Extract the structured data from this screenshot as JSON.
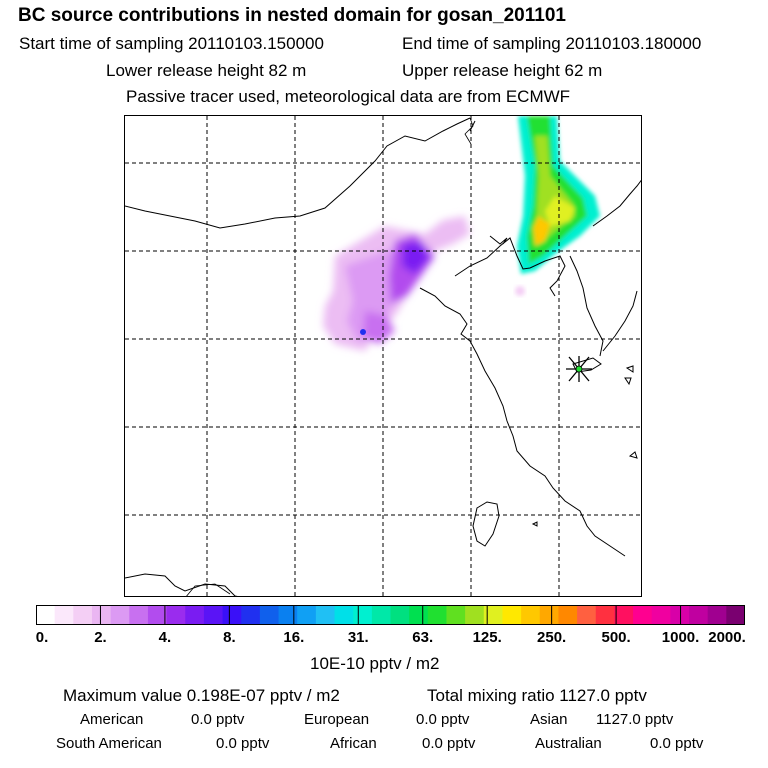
{
  "header": {
    "title": "BC  source contributions in nested domain for gosan_201101",
    "start_label": "Start time of sampling 20110103.150000",
    "end_label": "End time of sampling 20110103.180000",
    "lower_label": "Lower release height   82 m",
    "upper_label": "Upper release height   62 m",
    "tracer_label": "Passive tracer used, meteorological data are from ECMWF"
  },
  "colorbar": {
    "tick_labels": [
      "0.",
      "2.",
      "4.",
      "8.",
      "16.",
      "31.",
      "63.",
      "125.",
      "250.",
      "500.",
      "1000.",
      "2000."
    ],
    "unit": "10E-10 pptv / m2",
    "colors": [
      "#ffffff",
      "#fbe8fb",
      "#f4cff5",
      "#eab6f2",
      "#dc9af3",
      "#c870f0",
      "#b24cee",
      "#9a2cee",
      "#7a1cf2",
      "#5a14f6",
      "#3a10f8",
      "#2030f0",
      "#1060ec",
      "#0a80f0",
      "#10a0f4",
      "#20c0f4",
      "#00e0e8",
      "#00f0d0",
      "#00e8a8",
      "#00e080",
      "#00e050",
      "#20e030",
      "#60e020",
      "#a0e020",
      "#e0f020",
      "#ffe800",
      "#ffc800",
      "#ffa800",
      "#ff8800",
      "#ff6040",
      "#ff3040",
      "#ff1060",
      "#ff0090",
      "#f000a0",
      "#d800a8",
      "#c000a0",
      "#a00090",
      "#7a0070"
    ]
  },
  "stats": {
    "max_label": "Maximum value  0.198E-07 pptv / m2",
    "total_label": "Total mixing ratio     1127.0 pptv",
    "american_label": "American",
    "american_value": "0.0 pptv",
    "european_label": "European",
    "european_value": "0.0 pptv",
    "asian_label": "Asian",
    "asian_value": "1127.0 pptv",
    "south_american_label": "South American",
    "south_american_value": "0.0 pptv",
    "african_label": "African",
    "african_value": "0.0 pptv",
    "australian_label": "Australian",
    "australian_value": "0.0 pptv"
  },
  "map": {
    "receptor_marker": "asterisk-marker",
    "coastline_color": "#000000",
    "grid_color": "#000000"
  }
}
